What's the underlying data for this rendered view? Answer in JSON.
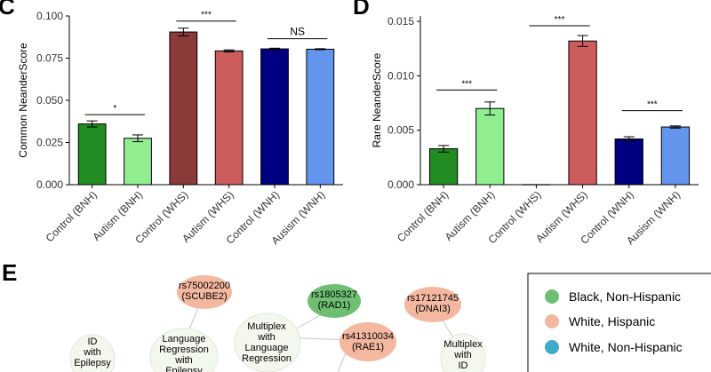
{
  "panels": {
    "c_label": "C",
    "d_label": "D",
    "e_label": "E"
  },
  "chart_data": [
    {
      "type": "bar",
      "panel": "C",
      "title": "",
      "xlabel": "",
      "ylabel": "Common NeanderScore",
      "categories": [
        "Control (BNH)",
        "Autism (BNH)",
        "Control (WHS)",
        "Autism (WHS)",
        "Control (WNH)",
        "Ausism (WNH)"
      ],
      "values": [
        0.036,
        0.0275,
        0.0905,
        0.0793,
        0.0805,
        0.0803
      ],
      "errors": [
        0.0018,
        0.002,
        0.0023,
        0.0006,
        0.0004,
        0.0003
      ],
      "colors": [
        "#228b22",
        "#90ee90",
        "#8b3a3a",
        "#cd5c5c",
        "#000080",
        "#6495ed"
      ],
      "ylim": [
        0,
        0.1
      ],
      "yticks": [
        0.0,
        0.025,
        0.05,
        0.075,
        0.1
      ],
      "ytick_labels": [
        "0.000",
        "0.025",
        "0.050",
        "0.075",
        "0.100"
      ],
      "grid": false,
      "significance": [
        {
          "from": 0,
          "to": 1,
          "label": "*",
          "y": 0.0415
        },
        {
          "from": 2,
          "to": 3,
          "label": "***",
          "y": 0.097
        },
        {
          "from": 4,
          "to": 5,
          "label": "NS",
          "y": 0.0865
        }
      ]
    },
    {
      "type": "bar",
      "panel": "D",
      "title": "",
      "xlabel": "",
      "ylabel": "Rare NeanderScore",
      "categories": [
        "Control (BNH)",
        "Autism (BNH)",
        "Control (WHS)",
        "Autism (WHS)",
        "Control (WNH)",
        "Ausism (WNH)"
      ],
      "values": [
        0.0033,
        0.007,
        0.0,
        0.0132,
        0.0042,
        0.0053
      ],
      "errors": [
        0.0003,
        0.0006,
        0.0,
        0.0005,
        0.0002,
        0.0001
      ],
      "colors": [
        "#228b22",
        "#90ee90",
        "#8b3a3a",
        "#cd5c5c",
        "#000080",
        "#6495ed"
      ],
      "ylim": [
        0,
        0.0155
      ],
      "yticks": [
        0.0,
        0.005,
        0.01,
        0.015
      ],
      "ytick_labels": [
        "0.000",
        "0.005",
        "0.010",
        "0.015"
      ],
      "grid": false,
      "significance": [
        {
          "from": 0,
          "to": 1,
          "label": "***",
          "y": 0.0087
        },
        {
          "from": 2,
          "to": 3,
          "label": "***",
          "y": 0.0146
        },
        {
          "from": 4,
          "to": 5,
          "label": "***",
          "y": 0.0068
        }
      ]
    }
  ],
  "network": {
    "nodes": [
      {
        "id": "n1",
        "label": "rs75002200\n(SCUBE2)",
        "color": "#f4b8a0"
      },
      {
        "id": "n2",
        "label": "rs1805327\n(RAD1)",
        "color": "#6fbf73"
      },
      {
        "id": "n3",
        "label": "rs17121745\n(DNAI3)",
        "color": "#f4b8a0"
      },
      {
        "id": "n4",
        "label": "rs41310034\n(RAE1)",
        "color": "#f4b8a0"
      },
      {
        "id": "n5",
        "label": "ID\nwith\nEpilepsy",
        "color": "#f3f8ee"
      },
      {
        "id": "n6",
        "label": "Language\nRegression\nwith\nEpilepsy",
        "color": "#f3f8ee"
      },
      {
        "id": "n7",
        "label": "Multiplex\nwith\nLanguage\nRegression",
        "color": "#f3f8ee"
      },
      {
        "id": "n8",
        "label": "Multiplex\nwith\nID",
        "color": "#f3f8ee"
      }
    ],
    "legend": [
      {
        "label": "Black, Non-Hispanic",
        "color": "#6fbf73"
      },
      {
        "label": "White, Hispanic",
        "color": "#f4b8a0"
      },
      {
        "label": "White, Non-Hispanic",
        "color": "#42a9c9"
      }
    ]
  }
}
